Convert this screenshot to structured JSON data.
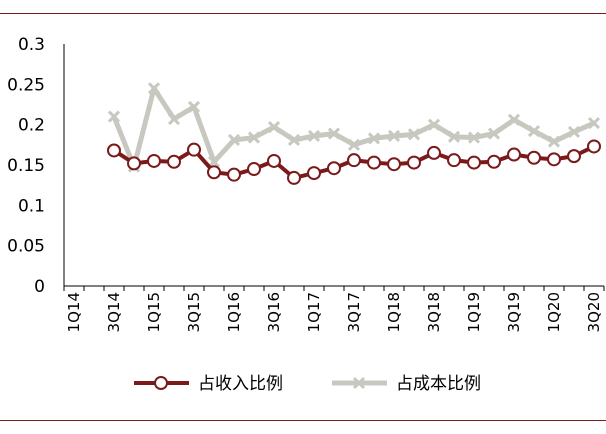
{
  "chart_data": {
    "type": "line",
    "categories": [
      "1Q14",
      "2Q14",
      "3Q14",
      "4Q14",
      "1Q15",
      "2Q15",
      "3Q15",
      "4Q15",
      "1Q16",
      "2Q16",
      "3Q16",
      "4Q16",
      "1Q17",
      "2Q17",
      "3Q17",
      "4Q17",
      "1Q18",
      "2Q18",
      "3Q18",
      "4Q18",
      "1Q19",
      "2Q19",
      "3Q19",
      "4Q19",
      "1Q20",
      "2Q20",
      "3Q20"
    ],
    "x_tick_labels": [
      "1Q14",
      "3Q14",
      "1Q15",
      "3Q15",
      "1Q16",
      "3Q16",
      "1Q17",
      "3Q17",
      "1Q18",
      "3Q18",
      "1Q19",
      "3Q19",
      "1Q20",
      "3Q20"
    ],
    "y_ticks": [
      "0",
      "0.05",
      "0.1",
      "0.15",
      "0.2",
      "0.25",
      "0.3"
    ],
    "ylim": [
      0,
      0.3
    ],
    "series": [
      {
        "name": "占收入比例",
        "color": "#7a1a1a",
        "marker": "circle",
        "values": [
          null,
          null,
          0.168,
          0.152,
          0.155,
          0.154,
          0.169,
          0.141,
          0.138,
          0.145,
          0.155,
          0.134,
          0.14,
          0.146,
          0.156,
          0.153,
          0.151,
          0.153,
          0.165,
          0.156,
          0.153,
          0.154,
          0.163,
          0.159,
          0.157,
          0.161,
          0.173
        ]
      },
      {
        "name": "占成本比例",
        "color": "#c8c8c0",
        "marker": "x",
        "values": [
          null,
          null,
          0.21,
          0.148,
          0.245,
          0.207,
          0.222,
          0.154,
          0.181,
          0.184,
          0.197,
          0.181,
          0.186,
          0.189,
          0.175,
          0.183,
          0.186,
          0.188,
          0.2,
          0.185,
          0.184,
          0.189,
          0.206,
          0.192,
          0.179,
          0.191,
          0.202
        ]
      }
    ],
    "legend": "bottom"
  }
}
